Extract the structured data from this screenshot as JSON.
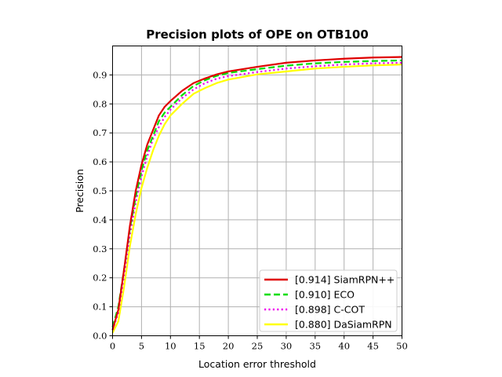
{
  "chart_data": {
    "type": "line",
    "title": "Precision plots of OPE on OTB100",
    "xlabel": "Location error threshold",
    "ylabel": "Precision",
    "xlim": [
      0,
      50
    ],
    "ylim": [
      0,
      1.0
    ],
    "xticks": [
      0,
      5,
      10,
      15,
      20,
      25,
      30,
      35,
      40,
      45,
      50
    ],
    "yticks": [
      0.0,
      0.1,
      0.2,
      0.3,
      0.4,
      0.5,
      0.6,
      0.7,
      0.8,
      0.9
    ],
    "grid": true,
    "legend_position": "lower-right",
    "x": [
      0,
      1,
      2,
      3,
      4,
      5,
      6,
      7,
      8,
      9,
      10,
      12,
      14,
      16,
      18,
      20,
      25,
      30,
      35,
      40,
      45,
      50
    ],
    "series": [
      {
        "name": "[0.914] SiamRPN++",
        "color": "#e00000",
        "dash": "solid",
        "values": [
          0.02,
          0.09,
          0.23,
          0.38,
          0.5,
          0.59,
          0.66,
          0.71,
          0.76,
          0.79,
          0.81,
          0.845,
          0.872,
          0.888,
          0.902,
          0.912,
          0.928,
          0.942,
          0.95,
          0.956,
          0.96,
          0.962
        ]
      },
      {
        "name": "[0.910] ECO",
        "color": "#00dd00",
        "dash": "dashed",
        "values": [
          0.03,
          0.1,
          0.23,
          0.37,
          0.48,
          0.57,
          0.64,
          0.69,
          0.74,
          0.77,
          0.79,
          0.83,
          0.862,
          0.882,
          0.897,
          0.907,
          0.92,
          0.932,
          0.94,
          0.945,
          0.948,
          0.95
        ]
      },
      {
        "name": "[0.898] C-COT",
        "color": "#ee00ee",
        "dash": "dotted",
        "values": [
          0.02,
          0.08,
          0.21,
          0.35,
          0.46,
          0.55,
          0.62,
          0.68,
          0.72,
          0.755,
          0.78,
          0.82,
          0.85,
          0.872,
          0.887,
          0.896,
          0.91,
          0.922,
          0.93,
          0.936,
          0.94,
          0.942
        ]
      },
      {
        "name": "[0.880] DaSiamRPN",
        "color": "#ffff00",
        "dash": "solid",
        "values": [
          0.01,
          0.05,
          0.17,
          0.31,
          0.42,
          0.51,
          0.58,
          0.64,
          0.69,
          0.73,
          0.76,
          0.8,
          0.835,
          0.855,
          0.872,
          0.884,
          0.902,
          0.912,
          0.922,
          0.928,
          0.933,
          0.936
        ]
      }
    ]
  }
}
